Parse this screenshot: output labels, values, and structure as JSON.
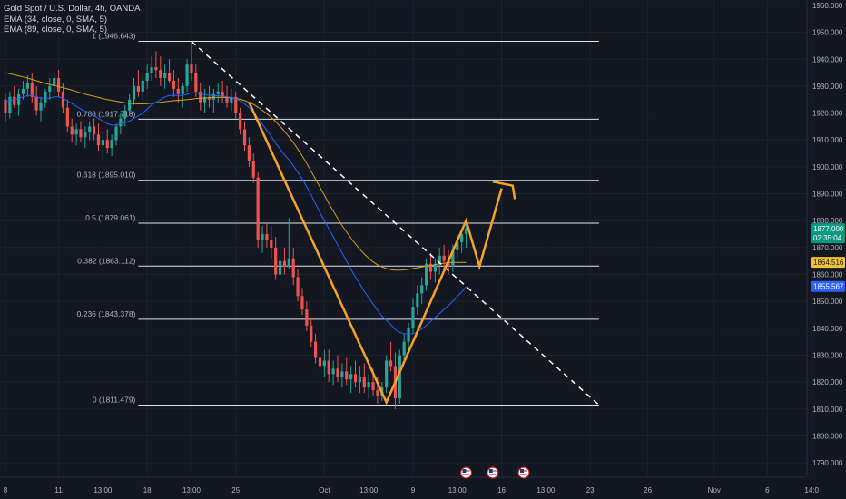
{
  "legend": {
    "title": "Gold Spot / U.S. Dollar, 4h, OANDA",
    "ema1": "EMA (34, close, 0, SMA, 5)",
    "ema2": "EMA (89, close, 0, SMA, 5)"
  },
  "colors": {
    "background": "#131722",
    "grid": "#1e222d",
    "text": "#d1d4dc",
    "axis_text": "#b2b5be",
    "fib_line": "#e0e3eb",
    "candle_up": "#26a69a",
    "candle_down": "#ef5350",
    "ema34": "#2962ff",
    "ema89": "#d4a017",
    "projection": "#f7a325",
    "trendline": "#ffffff",
    "price_label_bg": "#089981",
    "ema89_label_bg": "#f2c230",
    "ema34_label_bg": "#2962ff"
  },
  "chart_data": {
    "type": "candlestick",
    "symbol": "Gold Spot / U.S. Dollar",
    "timeframe": "4h",
    "source": "OANDA",
    "ylim": [
      1785,
      1962
    ],
    "y_ticks": [
      1790,
      1800,
      1810,
      1820,
      1830,
      1840,
      1850,
      1860,
      1870,
      1880,
      1890,
      1900,
      1910,
      1920,
      1930,
      1940,
      1950,
      1960
    ],
    "y_tick_labels": [
      "1790.000",
      "1800.000",
      "1810.000",
      "1820.000",
      "1830.000",
      "1840.000",
      "1850.000",
      "1860.000",
      "1870.000",
      "1880.000",
      "1890.000",
      "1900.000",
      "1910.000",
      "1920.000",
      "1930.000",
      "1940.000",
      "1950.000",
      "1960.000"
    ],
    "x_axis_labels": [
      {
        "label": "8",
        "bar": 0
      },
      {
        "label": "11",
        "bar": 12
      },
      {
        "label": "13:00",
        "bar": 22
      },
      {
        "label": "18",
        "bar": 32
      },
      {
        "label": "13:00",
        "bar": 42
      },
      {
        "label": "25",
        "bar": 52
      },
      {
        "label": "Oct",
        "bar": 72
      },
      {
        "label": "13:00",
        "bar": 82
      },
      {
        "label": "9",
        "bar": 92
      },
      {
        "label": "13:00",
        "bar": 102
      },
      {
        "label": "16",
        "bar": 112
      },
      {
        "label": "13:00",
        "bar": 122
      },
      {
        "label": "23",
        "bar": 132
      },
      {
        "label": "26",
        "bar": 145
      },
      {
        "label": "Nov",
        "bar": 160
      },
      {
        "label": "6",
        "bar": 172
      },
      {
        "label": "14:0",
        "bar": 182
      }
    ],
    "fibonacci": [
      {
        "label": "1 (1946.643)",
        "value": 1946.643
      },
      {
        "label": "0.786 (1917.718)",
        "value": 1917.718
      },
      {
        "label": "0.618 (1895.010)",
        "value": 1895.01
      },
      {
        "label": "0.5 (1879.061)",
        "value": 1879.061
      },
      {
        "label": "0.382 (1863.112)",
        "value": 1863.112
      },
      {
        "label": "0.236 (1843.378)",
        "value": 1843.378
      },
      {
        "label": "0 (1811.479)",
        "value": 1811.479
      }
    ],
    "fib_range_bars": [
      30,
      134
    ],
    "price_labels": [
      {
        "name": "last-price",
        "value": 1877.0,
        "text": "1877.000",
        "sub": "02:35:04"
      },
      {
        "name": "ema89",
        "value": 1864.516,
        "text": "1864.516"
      },
      {
        "name": "ema34",
        "value": 1855.567,
        "text": "1855.567"
      }
    ],
    "trendline": {
      "from": {
        "bar": 42,
        "value": 1946.6
      },
      "to": {
        "bar": 134,
        "value": 1811.5
      }
    },
    "projection_path": [
      {
        "bar": 55,
        "value": 1924
      },
      {
        "bar": 63,
        "value": 1895
      },
      {
        "bar": 86,
        "value": 1812.5
      },
      {
        "bar": 104,
        "value": 1880
      },
      {
        "bar": 107,
        "value": 1863
      },
      {
        "bar": 112,
        "value": 1892
      }
    ],
    "projection_arrow": {
      "tip": {
        "bar": 114.5,
        "value": 1893
      },
      "left": {
        "bar": 110,
        "value": 1894.5
      },
      "right": {
        "bar": 115,
        "value": 1888
      }
    },
    "event_icons_bars": [
      104,
      110,
      117
    ],
    "candles_ohlc": [
      [
        1925,
        1927,
        1917,
        1920
      ],
      [
        1920,
        1928,
        1918,
        1926
      ],
      [
        1926,
        1930,
        1922,
        1923
      ],
      [
        1923,
        1929,
        1919,
        1927
      ],
      [
        1927,
        1932,
        1925,
        1929
      ],
      [
        1929,
        1934,
        1926,
        1931
      ],
      [
        1931,
        1935,
        1924,
        1926
      ],
      [
        1926,
        1930,
        1919,
        1921
      ],
      [
        1921,
        1926,
        1917,
        1924
      ],
      [
        1924,
        1929,
        1922,
        1928
      ],
      [
        1928,
        1933,
        1925,
        1930
      ],
      [
        1930,
        1935,
        1927,
        1933
      ],
      [
        1933,
        1936,
        1926,
        1928
      ],
      [
        1928,
        1931,
        1920,
        1922
      ],
      [
        1922,
        1925,
        1913,
        1915
      ],
      [
        1915,
        1918,
        1909,
        1912
      ],
      [
        1912,
        1916,
        1908,
        1914
      ],
      [
        1914,
        1917,
        1909,
        1911
      ],
      [
        1911,
        1915,
        1907,
        1913
      ],
      [
        1913,
        1917,
        1910,
        1915
      ],
      [
        1915,
        1918,
        1910,
        1912
      ],
      [
        1912,
        1916,
        1906,
        1908
      ],
      [
        1908,
        1913,
        1902,
        1910
      ],
      [
        1910,
        1914,
        1905,
        1907
      ],
      [
        1907,
        1912,
        1904,
        1910
      ],
      [
        1910,
        1916,
        1908,
        1915
      ],
      [
        1915,
        1920,
        1912,
        1918
      ],
      [
        1918,
        1923,
        1915,
        1921
      ],
      [
        1921,
        1927,
        1919,
        1925
      ],
      [
        1925,
        1933,
        1923,
        1930
      ],
      [
        1930,
        1936,
        1926,
        1928
      ],
      [
        1928,
        1934,
        1925,
        1932
      ],
      [
        1932,
        1938,
        1929,
        1935
      ],
      [
        1935,
        1941,
        1932,
        1937
      ],
      [
        1937,
        1943,
        1933,
        1936
      ],
      [
        1936,
        1941,
        1930,
        1933
      ],
      [
        1933,
        1938,
        1929,
        1935
      ],
      [
        1935,
        1940,
        1931,
        1932
      ],
      [
        1932,
        1936,
        1926,
        1929
      ],
      [
        1929,
        1933,
        1924,
        1927
      ],
      [
        1927,
        1931,
        1922,
        1930
      ],
      [
        1930,
        1940,
        1928,
        1938
      ],
      [
        1938,
        1946.6,
        1932,
        1935
      ],
      [
        1935,
        1938,
        1926,
        1928
      ],
      [
        1928,
        1931,
        1921,
        1924
      ],
      [
        1924,
        1929,
        1920,
        1926
      ],
      [
        1926,
        1930,
        1922,
        1925
      ],
      [
        1925,
        1929,
        1920,
        1927
      ],
      [
        1927,
        1931,
        1924,
        1928
      ],
      [
        1928,
        1932,
        1924,
        1926
      ],
      [
        1926,
        1930,
        1922,
        1924
      ],
      [
        1924,
        1929,
        1921,
        1926
      ],
      [
        1926,
        1928,
        1918,
        1920
      ],
      [
        1920,
        1922,
        1912,
        1914
      ],
      [
        1914,
        1917,
        1906,
        1908
      ],
      [
        1908,
        1911,
        1900,
        1902
      ],
      [
        1902,
        1905,
        1894,
        1896
      ],
      [
        1896,
        1898,
        1870,
        1873
      ],
      [
        1873,
        1878,
        1868,
        1875
      ],
      [
        1875,
        1879,
        1870,
        1873
      ],
      [
        1873,
        1878,
        1866,
        1870
      ],
      [
        1870,
        1874,
        1858,
        1860
      ],
      [
        1860,
        1868,
        1857,
        1865
      ],
      [
        1865,
        1870,
        1860,
        1863
      ],
      [
        1863,
        1881,
        1862,
        1866
      ],
      [
        1866,
        1870,
        1856,
        1859
      ],
      [
        1859,
        1862,
        1850,
        1852
      ],
      [
        1852,
        1855,
        1845,
        1847
      ],
      [
        1847,
        1850,
        1839,
        1841
      ],
      [
        1841,
        1844,
        1833,
        1835
      ],
      [
        1835,
        1838,
        1827,
        1829
      ],
      [
        1829,
        1833,
        1823,
        1826
      ],
      [
        1826,
        1832,
        1822,
        1828
      ],
      [
        1828,
        1832,
        1820,
        1823
      ],
      [
        1823,
        1828,
        1819,
        1825
      ],
      [
        1825,
        1830,
        1820,
        1822
      ],
      [
        1822,
        1827,
        1818,
        1824
      ],
      [
        1824,
        1829,
        1819,
        1821
      ],
      [
        1821,
        1826,
        1816,
        1823
      ],
      [
        1823,
        1828,
        1818,
        1820
      ],
      [
        1820,
        1826,
        1816,
        1822
      ],
      [
        1822,
        1827,
        1816,
        1818
      ],
      [
        1818,
        1823,
        1814,
        1820
      ],
      [
        1820,
        1825,
        1815,
        1817
      ],
      [
        1817,
        1822,
        1812,
        1815
      ],
      [
        1815,
        1820,
        1813,
        1818
      ],
      [
        1818,
        1830,
        1816,
        1828
      ],
      [
        1828,
        1835,
        1824,
        1826
      ],
      [
        1826,
        1831,
        1810,
        1814
      ],
      [
        1814,
        1832,
        1812,
        1830
      ],
      [
        1830,
        1838,
        1827,
        1835
      ],
      [
        1835,
        1842,
        1832,
        1840
      ],
      [
        1840,
        1851,
        1838,
        1848
      ],
      [
        1848,
        1856,
        1845,
        1853
      ],
      [
        1853,
        1859,
        1849,
        1856
      ],
      [
        1856,
        1866,
        1854,
        1864
      ],
      [
        1864,
        1868,
        1858,
        1861
      ],
      [
        1861,
        1866,
        1857,
        1864
      ],
      [
        1864,
        1870,
        1860,
        1867
      ],
      [
        1867,
        1871,
        1862,
        1865
      ],
      [
        1865,
        1869,
        1860,
        1863
      ],
      [
        1863,
        1871,
        1861,
        1869
      ],
      [
        1869,
        1875,
        1866,
        1872
      ],
      [
        1872,
        1877,
        1868,
        1875
      ],
      [
        1875,
        1879,
        1870,
        1877
      ]
    ],
    "ema34_values_from_bar0": [
      1924,
      1924.5,
      1925,
      1925.5,
      1926,
      1926.5,
      1926.5,
      1926,
      1925.5,
      1925.5,
      1925.5,
      1926,
      1926,
      1925.5,
      1924.5,
      1923.5,
      1922.5,
      1921.5,
      1920.5,
      1919.8,
      1919,
      1918,
      1917,
      1916,
      1915.5,
      1915.5,
      1916,
      1916.5,
      1917,
      1918,
      1919,
      1920,
      1921.5,
      1923,
      1924,
      1925,
      1926,
      1926.5,
      1926.5,
      1926.5,
      1926.5,
      1927,
      1927.5,
      1927.5,
      1927,
      1926.8,
      1926.6,
      1926.5,
      1926.4,
      1926.3,
      1926,
      1925.8,
      1925.3,
      1924.5,
      1923.4,
      1922,
      1920.4,
      1918,
      1915.8,
      1913.6,
      1911.4,
      1908.8,
      1906.6,
      1904.5,
      1902.6,
      1900.4,
      1898,
      1895.5,
      1892.7,
      1889.6,
      1886.3,
      1883,
      1880,
      1877,
      1874,
      1871,
      1868,
      1865,
      1862,
      1859,
      1856.5,
      1853.8,
      1851.3,
      1849,
      1846.7,
      1844.5,
      1843,
      1841.4,
      1839.5,
      1838.5,
      1838,
      1837.8,
      1838,
      1838.7,
      1839.8,
      1841,
      1842.5,
      1844,
      1845.5,
      1847,
      1848.5,
      1850,
      1851.8,
      1853.5,
      1855.5
    ],
    "ema89_values_from_bar0": [
      1935,
      1934.6,
      1934.2,
      1933.8,
      1933.4,
      1933,
      1932.5,
      1932,
      1931.5,
      1931,
      1930.6,
      1930.2,
      1929.8,
      1929.4,
      1929,
      1928.5,
      1928,
      1927.5,
      1927,
      1926.6,
      1926.2,
      1925.8,
      1925.4,
      1925,
      1924.7,
      1924.4,
      1924.1,
      1923.8,
      1923.6,
      1923.5,
      1923.4,
      1923.4,
      1923.5,
      1923.6,
      1923.8,
      1924,
      1924.2,
      1924.4,
      1924.6,
      1924.7,
      1924.8,
      1925,
      1925.2,
      1925.4,
      1925.5,
      1925.6,
      1925.7,
      1925.8,
      1925.8,
      1925.8,
      1925.8,
      1925.6,
      1925.4,
      1925.1,
      1924.6,
      1924,
      1923.2,
      1922.2,
      1921,
      1919.8,
      1918.4,
      1916.8,
      1915,
      1913.2,
      1911.2,
      1909,
      1906.6,
      1904,
      1901.3,
      1898.4,
      1895.4,
      1892.4,
      1889.4,
      1886.4,
      1883.6,
      1880.8,
      1878.2,
      1875.8,
      1873.5,
      1871.4,
      1869.4,
      1867.6,
      1866,
      1864.7,
      1863.6,
      1862.8,
      1862.2,
      1861.8,
      1861.6,
      1861.6,
      1861.7,
      1861.9,
      1862.2,
      1862.5,
      1862.8,
      1863.1,
      1863.4,
      1863.7,
      1864,
      1864.2,
      1864.4,
      1864.5,
      1864.5,
      1864.5,
      1864.5
    ]
  }
}
